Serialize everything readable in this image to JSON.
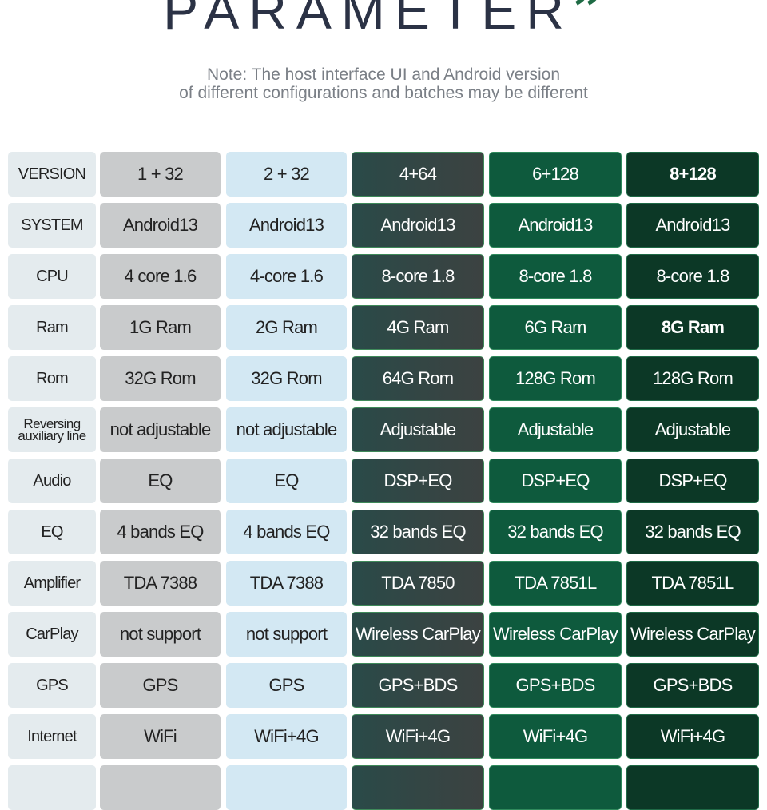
{
  "header": {
    "title": "PARAMETER",
    "title_mark": "”",
    "note": [
      "Note: The host interface UI and Android version",
      "of different configurations and batches may be different"
    ]
  },
  "table": {
    "rows": [
      [
        "VERSION",
        "1 + 32",
        "2 + 32",
        "4+64",
        "6+128",
        "8+128"
      ],
      [
        "SYSTEM",
        "Android13",
        "Android13",
        "Android13",
        "Android13",
        "Android13"
      ],
      [
        "CPU",
        "4 core 1.6",
        "4-core 1.6",
        "8-core 1.8",
        "8-core 1.8",
        "8-core 1.8"
      ],
      [
        "Ram",
        "1G Ram",
        "2G Ram",
        "4G Ram",
        "6G Ram",
        "8G Ram"
      ],
      [
        "Rom",
        "32G Rom",
        "32G Rom",
        "64G Rom",
        "128G Rom",
        "128G Rom"
      ],
      [
        "Reversing auxiliary line",
        "not adjustable",
        "not adjustable",
        "Adjustable",
        "Adjustable",
        "Adjustable"
      ],
      [
        "Audio",
        "EQ",
        "EQ",
        "DSP+EQ",
        "DSP+EQ",
        "DSP+EQ"
      ],
      [
        "EQ",
        "4 bands EQ",
        "4 bands EQ",
        "32 bands EQ",
        "32 bands EQ",
        "32 bands EQ"
      ],
      [
        "Amplifier",
        "TDA 7388",
        "TDA 7388",
        "TDA 7850",
        "TDA 7851L",
        "TDA 7851L"
      ],
      [
        "CarPlay",
        "not support",
        "not support",
        "Wireless CarPlay",
        "Wireless CarPlay",
        "Wireless CarPlay"
      ],
      [
        "GPS",
        "GPS",
        "GPS",
        "GPS+BDS",
        "GPS+BDS",
        "GPS+BDS"
      ],
      [
        "Internet",
        "WiFi",
        "WiFi+4G",
        "WiFi+4G",
        "WiFi+4G",
        "WiFi+4G"
      ]
    ]
  }
}
